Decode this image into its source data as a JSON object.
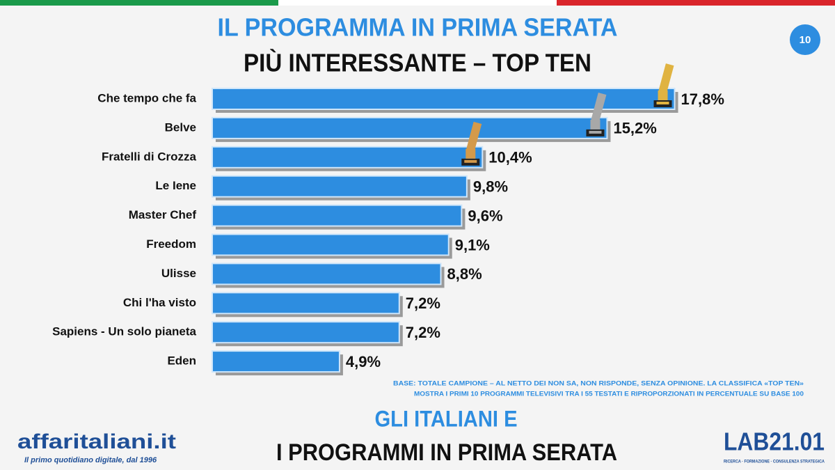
{
  "chart_data": {
    "type": "bar",
    "orientation": "horizontal",
    "title": "IL PROGRAMMA IN PRIMA SERATA",
    "subtitle": "PIÙ INTERESSANTE – TOP TEN",
    "categories": [
      "Che tempo che fa",
      "Belve",
      "Fratelli di Crozza",
      "Le Iene",
      "Master Chef",
      "Freedom",
      "Ulisse",
      "Chi l'ha visto",
      "Sapiens - Un solo pianeta",
      "Eden"
    ],
    "values": [
      17.8,
      15.2,
      10.4,
      9.8,
      9.6,
      9.1,
      8.8,
      7.2,
      7.2,
      4.9
    ],
    "value_labels": [
      "17,8%",
      "15,2%",
      "10,4%",
      "9,8%",
      "9,6%",
      "9,1%",
      "8,8%",
      "7,2%",
      "7,2%",
      "4,9%"
    ],
    "color": "#2d8de0",
    "xlim": [
      0,
      18
    ]
  },
  "page_number": "10",
  "note": [
    "BASE: TOTALE CAMPIONE – AL NETTO DEI NON SA, NON RISPONDE, SENZA OPINIONE. LA CLASSIFICA «TOP TEN»",
    "MOSTRA I PRIMI 10 PROGRAMMI TELEVISIVI TRA I 55 TESTATI E RIPROPORZIONATI IN PERCENTUALE SU BASE 100"
  ],
  "footer": {
    "line1": "GLI ITALIANI E",
    "line2": "I PROGRAMMI IN PRIMA SERATA"
  },
  "logo_left": {
    "name": "affaritaliani.it",
    "tagline": "Il primo quotidiano digitale, dal 1996"
  },
  "logo_right": {
    "name": "LAB21.01",
    "tagline": "RICERCA · FORMAZIONE · CONSULENZA STRATEGICA"
  }
}
